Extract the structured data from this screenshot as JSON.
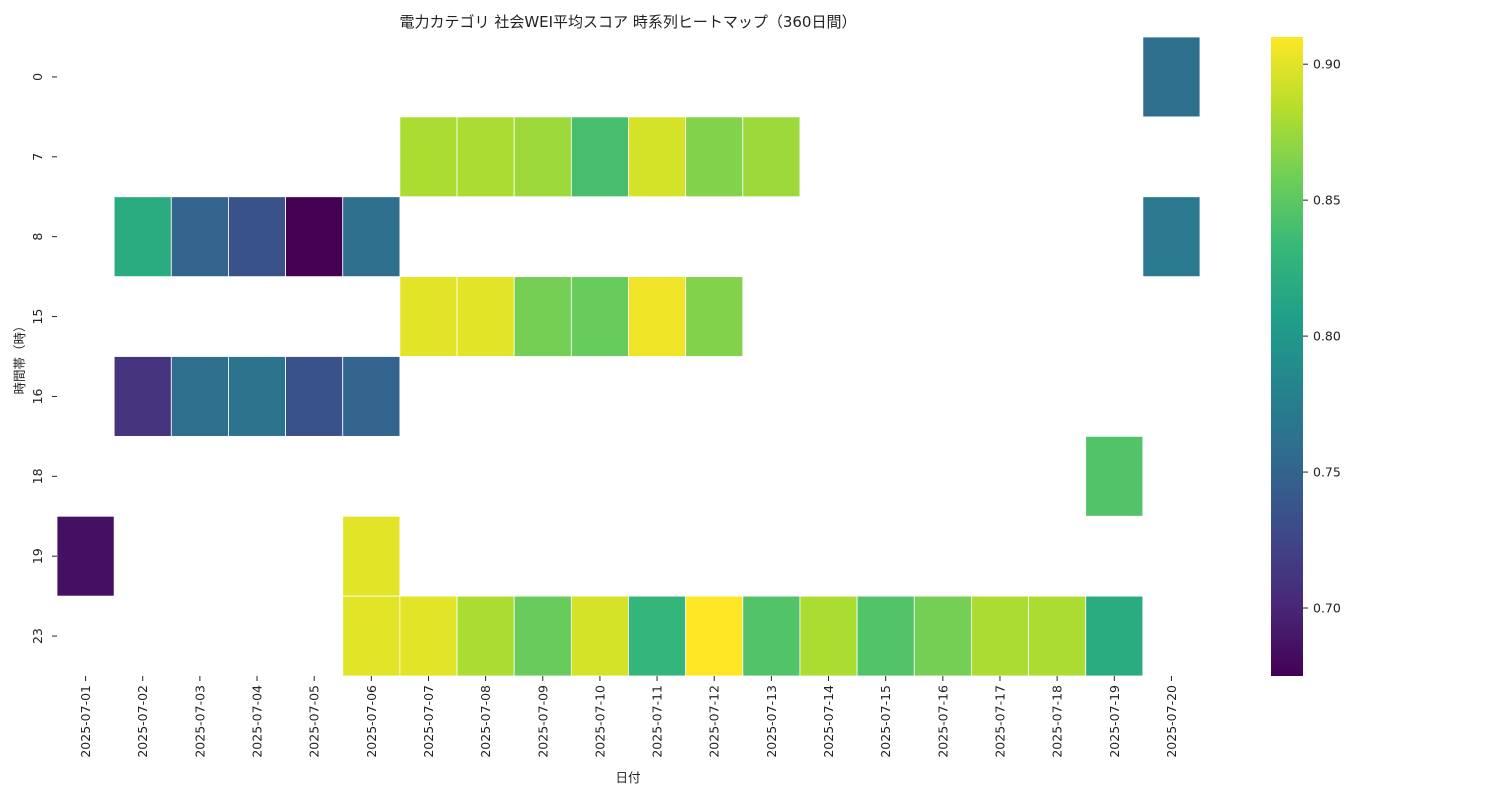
{
  "chart_data": {
    "type": "heatmap",
    "title": "電力カテゴリ 社会WEI平均スコア 時系列ヒートマップ（360日間）",
    "xlabel": "日付",
    "ylabel": "時間帯（時）",
    "x_categories": [
      "2025-07-01",
      "2025-07-02",
      "2025-07-03",
      "2025-07-04",
      "2025-07-05",
      "2025-07-06",
      "2025-07-07",
      "2025-07-08",
      "2025-07-09",
      "2025-07-10",
      "2025-07-11",
      "2025-07-12",
      "2025-07-13",
      "2025-07-14",
      "2025-07-15",
      "2025-07-16",
      "2025-07-17",
      "2025-07-18",
      "2025-07-19",
      "2025-07-20"
    ],
    "y_categories": [
      "0",
      "7",
      "8",
      "15",
      "16",
      "18",
      "19",
      "23"
    ],
    "values": [
      [
        null,
        null,
        null,
        null,
        null,
        null,
        null,
        null,
        null,
        null,
        null,
        null,
        null,
        null,
        null,
        null,
        null,
        null,
        null,
        0.76
      ],
      [
        null,
        null,
        null,
        null,
        null,
        null,
        0.88,
        0.88,
        0.875,
        0.84,
        0.895,
        0.865,
        0.875,
        null,
        null,
        null,
        null,
        null,
        null,
        null
      ],
      [
        null,
        0.82,
        0.75,
        0.735,
        0.675,
        0.76,
        null,
        null,
        null,
        null,
        null,
        null,
        null,
        null,
        null,
        null,
        null,
        null,
        null,
        0.77
      ],
      [
        null,
        null,
        null,
        null,
        null,
        null,
        0.9,
        0.9,
        0.86,
        0.855,
        0.905,
        0.865,
        null,
        null,
        null,
        null,
        null,
        null,
        null,
        null
      ],
      [
        null,
        0.71,
        0.76,
        0.765,
        0.735,
        0.75,
        null,
        null,
        null,
        null,
        null,
        null,
        null,
        null,
        null,
        null,
        null,
        null,
        null,
        null
      ],
      [
        null,
        null,
        null,
        null,
        null,
        null,
        null,
        null,
        null,
        null,
        null,
        null,
        null,
        null,
        null,
        null,
        null,
        null,
        0.845,
        null
      ],
      [
        0.685,
        null,
        null,
        null,
        null,
        0.9,
        null,
        null,
        null,
        null,
        null,
        null,
        null,
        null,
        null,
        null,
        null,
        null,
        null,
        null
      ],
      [
        null,
        null,
        null,
        null,
        null,
        0.9,
        0.9,
        0.88,
        0.855,
        0.895,
        0.83,
        0.91,
        0.845,
        0.88,
        0.845,
        0.86,
        0.88,
        0.88,
        0.82,
        null
      ]
    ],
    "colormap": "viridis",
    "vmin": 0.675,
    "vmax": 0.91,
    "colorbar_ticks": [
      0.7,
      0.75,
      0.8,
      0.85,
      0.9
    ],
    "colorbar_tick_labels": [
      "0.70",
      "0.75",
      "0.80",
      "0.85",
      "0.90"
    ],
    "legend_position": "right colorbar",
    "grid": false
  }
}
